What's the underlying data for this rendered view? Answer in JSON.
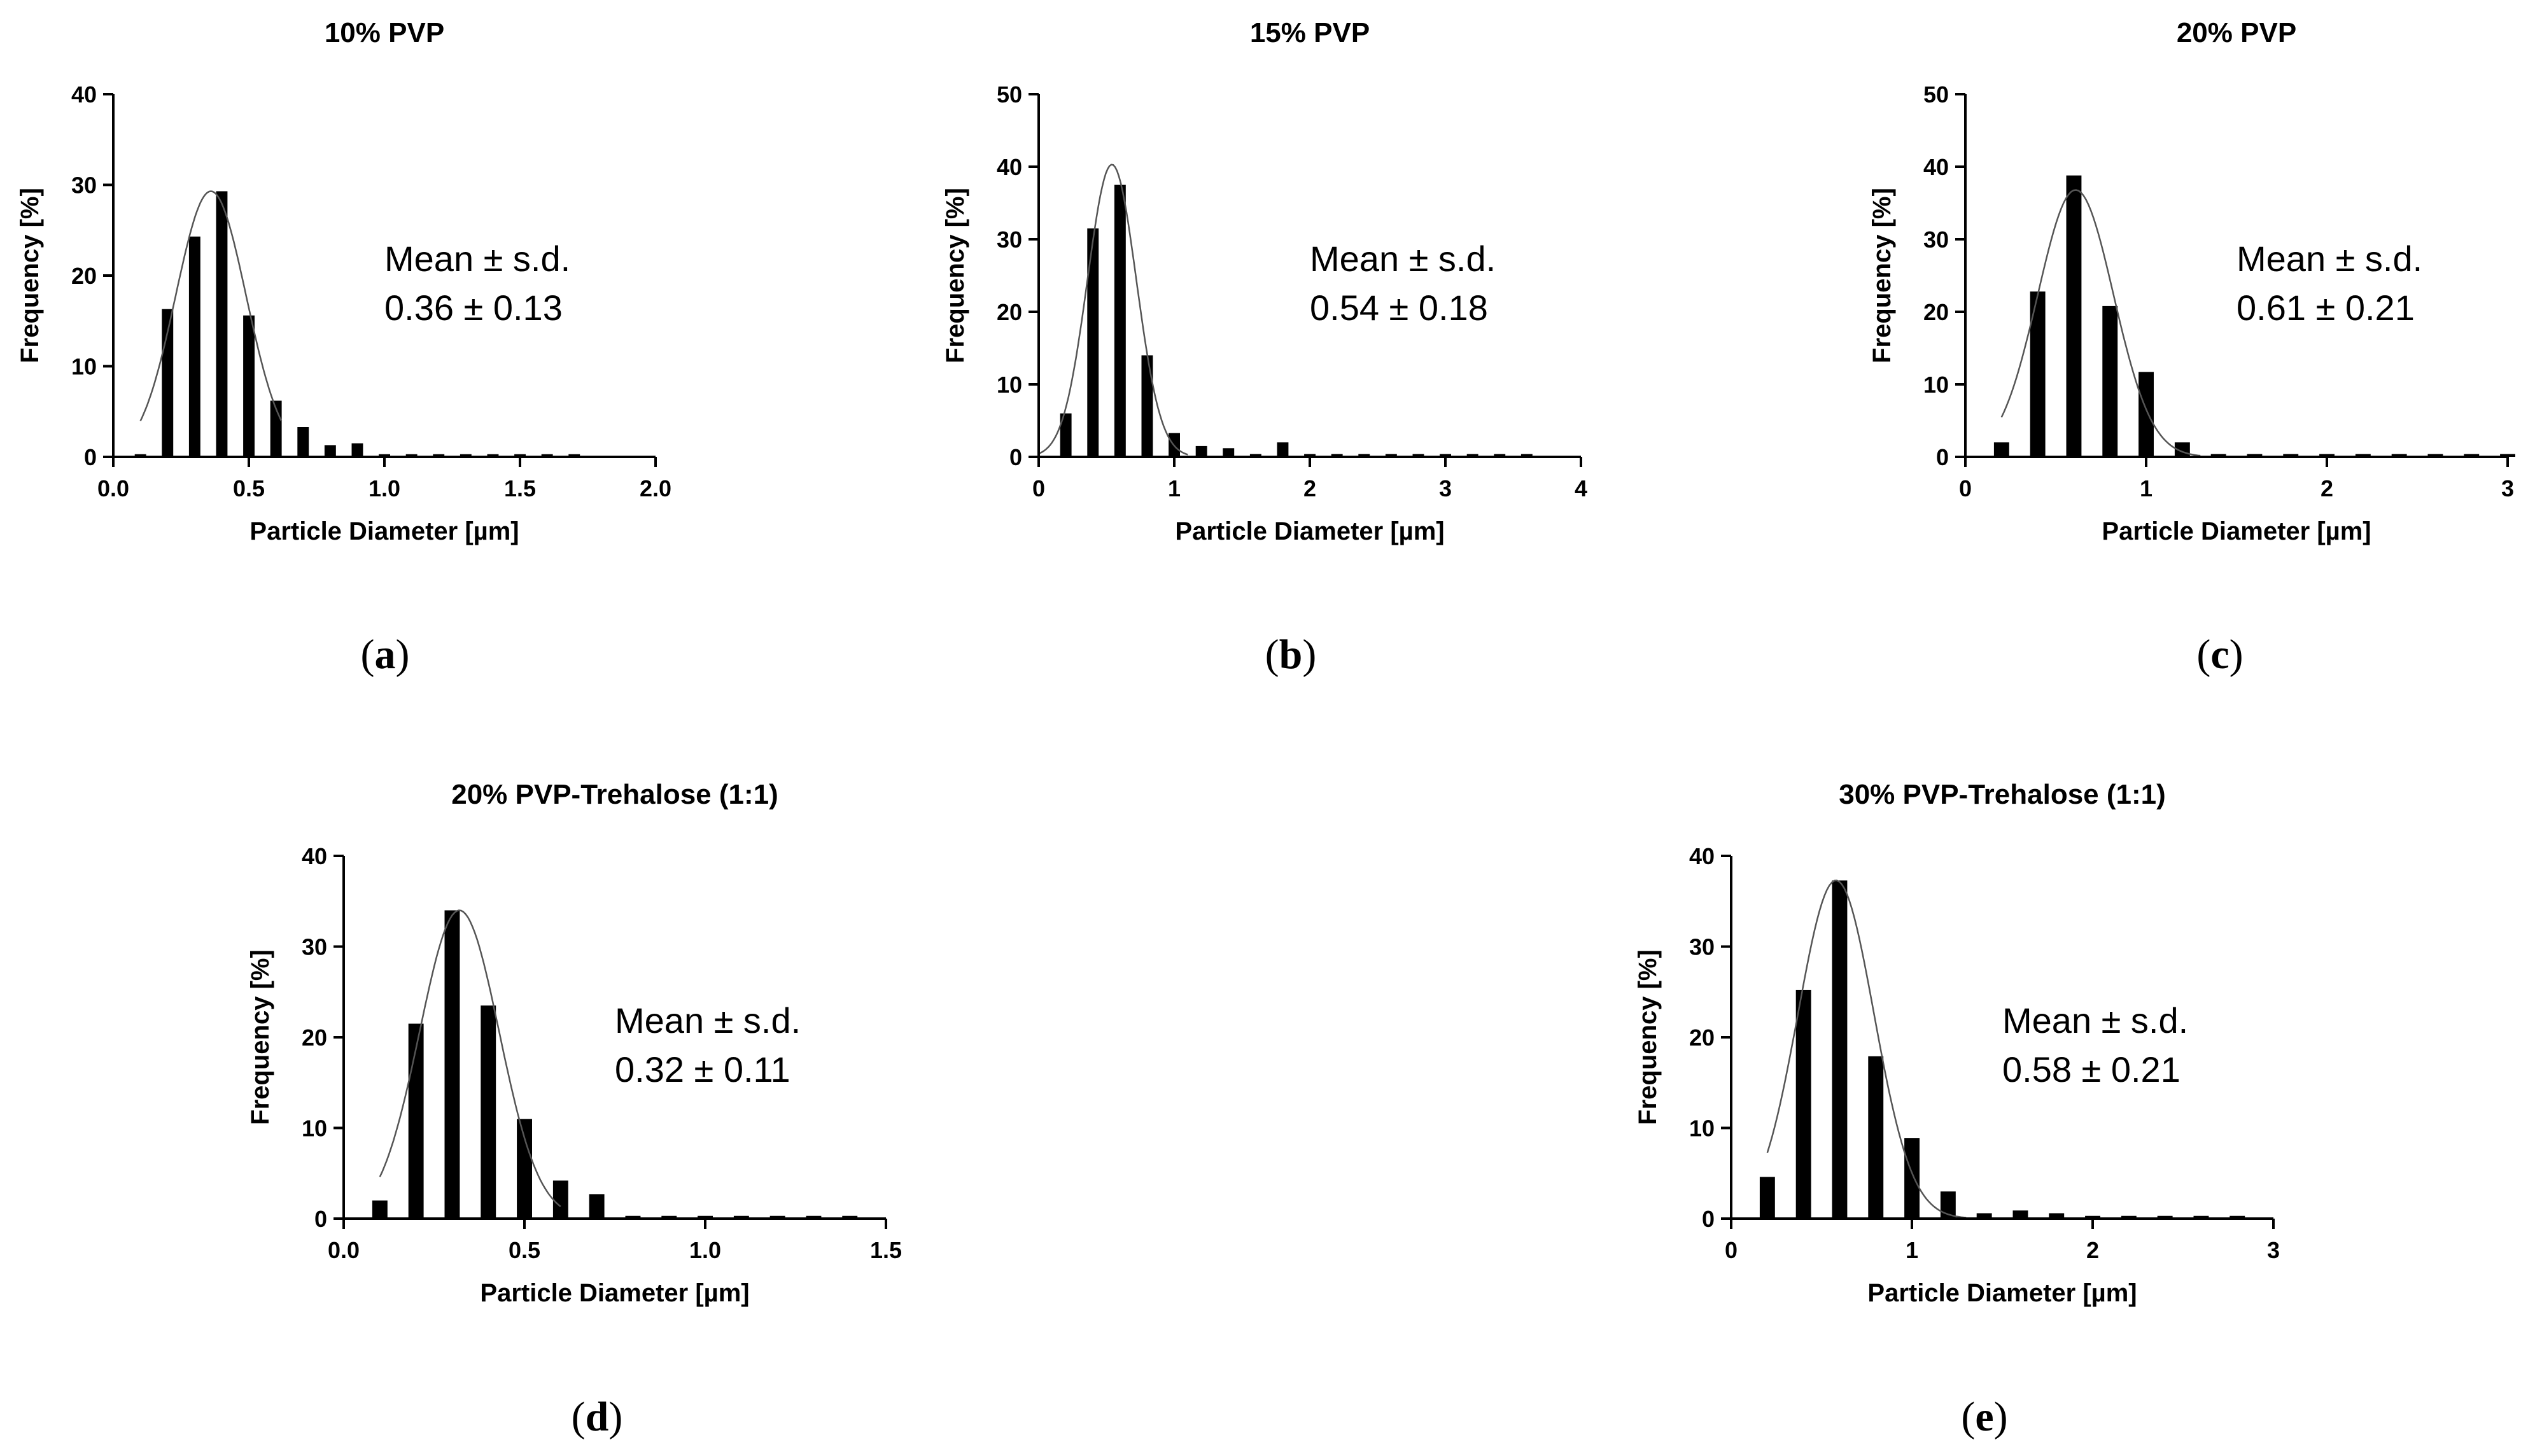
{
  "figure_labels": [
    "a",
    "b",
    "c",
    "d",
    "e"
  ],
  "chart_data": [
    {
      "type": "bar",
      "panel": "a",
      "title": "10% PVP",
      "xlabel": "Particle Diameter [µm]",
      "ylabel": "Frequency [%]",
      "xlim": [
        0.0,
        2.0
      ],
      "ylim": [
        0,
        40
      ],
      "xticks": [
        0.0,
        0.5,
        1.0,
        1.5,
        2.0
      ],
      "xtick_labels": [
        "0.0",
        "0.5",
        "1.0",
        "1.5",
        "2.0"
      ],
      "yticks": [
        0,
        10,
        20,
        30,
        40
      ],
      "ytick_labels": [
        "0",
        "10",
        "20",
        "30",
        "40"
      ],
      "bin_width": 0.1,
      "x": [
        0.1,
        0.2,
        0.3,
        0.4,
        0.5,
        0.6,
        0.7,
        0.8,
        0.9,
        1.0,
        1.1,
        1.2,
        1.3,
        1.4,
        1.5,
        1.6,
        1.7
      ],
      "values": [
        0.3,
        16.3,
        24.3,
        29.3,
        15.6,
        6.2,
        3.3,
        1.3,
        1.5,
        0.3,
        0.3,
        0.3,
        0.3,
        0.3,
        0.3,
        0.3,
        0.3
      ],
      "fit": {
        "type": "gaussian",
        "mean": 0.36,
        "sd": 0.13,
        "peak": 29.3,
        "x_range": [
          0.1,
          0.62
        ]
      },
      "annotation": {
        "line1": "Mean ± s.d.",
        "line2": "0.36 ± 0.13"
      }
    },
    {
      "type": "bar",
      "panel": "b",
      "title": "15% PVP",
      "xlabel": "Particle Diameter [µm]",
      "ylabel": "Frequency [%]",
      "xlim": [
        0,
        4
      ],
      "ylim": [
        0,
        50
      ],
      "xticks": [
        0,
        1,
        2,
        3,
        4
      ],
      "xtick_labels": [
        "0",
        "1",
        "2",
        "3",
        "4"
      ],
      "yticks": [
        0,
        10,
        20,
        30,
        40,
        50
      ],
      "ytick_labels": [
        "0",
        "10",
        "20",
        "30",
        "40",
        "50"
      ],
      "bin_width": 0.2,
      "x": [
        0.2,
        0.4,
        0.6,
        0.8,
        1.0,
        1.2,
        1.4,
        1.6,
        1.8,
        2.0,
        2.2,
        2.4,
        2.6,
        2.8,
        3.0,
        3.2,
        3.4,
        3.6
      ],
      "values": [
        6.0,
        31.5,
        37.5,
        14.0,
        3.3,
        1.5,
        1.2,
        0.4,
        2.0,
        0.4,
        0.4,
        0.4,
        0.4,
        0.4,
        0.4,
        0.4,
        0.4,
        0.4
      ],
      "fit": {
        "type": "gaussian",
        "mean": 0.54,
        "sd": 0.18,
        "peak": 40.3,
        "x_range": [
          0.0,
          1.1
        ]
      },
      "annotation": {
        "line1": "Mean ± s.d.",
        "line2": "0.54 ± 0.18"
      }
    },
    {
      "type": "bar",
      "panel": "c",
      "title": "20% PVP",
      "xlabel": "Particle Diameter [µm]",
      "ylabel": "Frequency [%]",
      "xlim": [
        0,
        3
      ],
      "ylim": [
        0,
        50
      ],
      "xticks": [
        0,
        1,
        2,
        3
      ],
      "xtick_labels": [
        "0",
        "1",
        "2",
        "3"
      ],
      "yticks": [
        0,
        10,
        20,
        30,
        40,
        50
      ],
      "ytick_labels": [
        "0",
        "10",
        "20",
        "30",
        "40",
        "50"
      ],
      "bin_width": 0.2,
      "x": [
        0.2,
        0.4,
        0.6,
        0.8,
        1.0,
        1.2,
        1.4,
        1.6,
        1.8,
        2.0,
        2.2,
        2.4,
        2.6,
        2.8,
        3.0
      ],
      "values": [
        2.0,
        22.8,
        38.8,
        20.8,
        11.7,
        2.0,
        0.4,
        0.4,
        0.4,
        0.4,
        0.4,
        0.4,
        0.4,
        0.4,
        0.4
      ],
      "fit": {
        "type": "gaussian",
        "mean": 0.61,
        "sd": 0.21,
        "peak": 36.8,
        "x_range": [
          0.2,
          1.3
        ]
      },
      "annotation": {
        "line1": "Mean ± s.d.",
        "line2": "0.61 ± 0.21"
      }
    },
    {
      "type": "bar",
      "panel": "d",
      "title": "20% PVP-Trehalose (1:1)",
      "xlabel": "Particle Diameter [µm]",
      "ylabel": "Frequency [%]",
      "xlim": [
        0.0,
        1.5
      ],
      "ylim": [
        0,
        40
      ],
      "xticks": [
        0.0,
        0.5,
        1.0,
        1.5
      ],
      "xtick_labels": [
        "0.0",
        "0.5",
        "1.0",
        "1.5"
      ],
      "yticks": [
        0,
        10,
        20,
        30,
        40
      ],
      "ytick_labels": [
        "0",
        "10",
        "20",
        "30",
        "40"
      ],
      "bin_width": 0.1,
      "x": [
        0.1,
        0.2,
        0.3,
        0.4,
        0.5,
        0.6,
        0.7,
        0.8,
        0.9,
        1.0,
        1.1,
        1.2,
        1.3,
        1.4
      ],
      "values": [
        2.0,
        21.5,
        34.0,
        23.5,
        11.0,
        4.2,
        2.7,
        0.3,
        0.3,
        0.3,
        0.3,
        0.3,
        0.3,
        0.3
      ],
      "fit": {
        "type": "gaussian",
        "mean": 0.32,
        "sd": 0.11,
        "peak": 34.0,
        "x_range": [
          0.1,
          0.6
        ]
      },
      "annotation": {
        "line1": "Mean ± s.d.",
        "line2": "0.32 ± 0.11"
      }
    },
    {
      "type": "bar",
      "panel": "e",
      "title": "30% PVP-Trehalose (1:1)",
      "xlabel": "Particle Diameter [µm]",
      "ylabel": "Frequency [%]",
      "xlim": [
        0,
        3
      ],
      "ylim": [
        0,
        40
      ],
      "xticks": [
        0,
        1,
        2,
        3
      ],
      "xtick_labels": [
        "0",
        "1",
        "2",
        "3"
      ],
      "yticks": [
        0,
        10,
        20,
        30,
        40
      ],
      "ytick_labels": [
        "0",
        "10",
        "20",
        "30",
        "40"
      ],
      "bin_width": 0.2,
      "x": [
        0.2,
        0.4,
        0.6,
        0.8,
        1.0,
        1.2,
        1.4,
        1.6,
        1.8,
        2.0,
        2.2,
        2.4,
        2.6,
        2.8
      ],
      "values": [
        4.6,
        25.2,
        37.3,
        17.9,
        8.9,
        3.0,
        0.6,
        0.9,
        0.6,
        0.3,
        0.3,
        0.3,
        0.3,
        0.3
      ],
      "fit": {
        "type": "gaussian",
        "mean": 0.58,
        "sd": 0.21,
        "peak": 37.3,
        "x_range": [
          0.2,
          1.3
        ]
      },
      "annotation": {
        "line1": "Mean ± s.d.",
        "line2": "0.58 ± 0.21"
      }
    }
  ]
}
